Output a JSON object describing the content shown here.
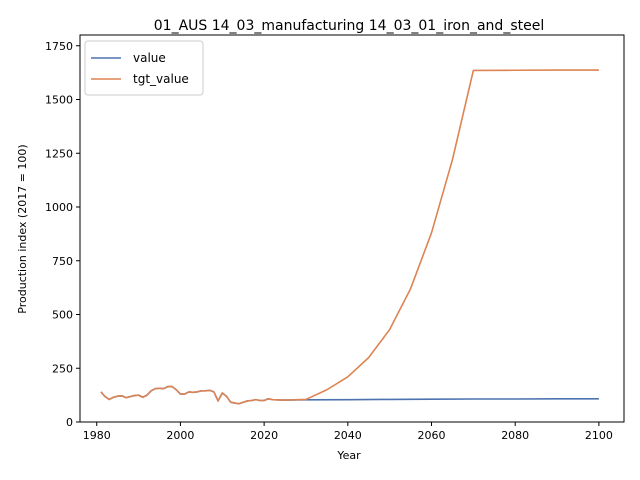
{
  "chart_data": {
    "type": "line",
    "title": "01_AUS 14_03_manufacturing 14_03_01_iron_and_steel",
    "xlabel": "Year",
    "ylabel": "Production index (2017 = 100)",
    "xlim": [
      1976,
      2106
    ],
    "ylim": [
      0,
      1800
    ],
    "xticks": [
      1980,
      2000,
      2020,
      2040,
      2060,
      2080,
      2100
    ],
    "yticks": [
      0,
      250,
      500,
      750,
      1000,
      1250,
      1500,
      1750
    ],
    "legend_position": "top-left",
    "grid": false,
    "series": [
      {
        "name": "value",
        "color": "#4c72b0",
        "x": [
          1981,
          1982,
          1983,
          1984,
          1985,
          1986,
          1987,
          1988,
          1989,
          1990,
          1991,
          1992,
          1993,
          1994,
          1995,
          1996,
          1997,
          1998,
          1999,
          2000,
          2001,
          2002,
          2003,
          2004,
          2005,
          2006,
          2007,
          2008,
          2009,
          2010,
          2011,
          2012,
          2013,
          2014,
          2015,
          2016,
          2017,
          2018,
          2019,
          2020,
          2021,
          2022,
          2023,
          2024,
          2025,
          2030,
          2040,
          2050,
          2060,
          2070,
          2080,
          2090,
          2100
        ],
        "y": [
          140,
          118,
          105,
          115,
          120,
          122,
          113,
          118,
          123,
          125,
          115,
          125,
          145,
          155,
          157,
          155,
          165,
          165,
          150,
          130,
          130,
          140,
          138,
          140,
          145,
          145,
          147,
          140,
          98,
          135,
          120,
          92,
          88,
          85,
          92,
          98,
          100,
          104,
          100,
          100,
          108,
          104,
          103,
          102,
          102,
          103,
          104,
          105,
          106,
          107,
          107,
          108,
          108
        ]
      },
      {
        "name": "tgt_value",
        "color": "#dd8452",
        "x": [
          1981,
          1982,
          1983,
          1984,
          1985,
          1986,
          1987,
          1988,
          1989,
          1990,
          1991,
          1992,
          1993,
          1994,
          1995,
          1996,
          1997,
          1998,
          1999,
          2000,
          2001,
          2002,
          2003,
          2004,
          2005,
          2006,
          2007,
          2008,
          2009,
          2010,
          2011,
          2012,
          2013,
          2014,
          2015,
          2016,
          2017,
          2018,
          2019,
          2020,
          2021,
          2022,
          2023,
          2024,
          2025,
          2030,
          2035,
          2040,
          2045,
          2050,
          2055,
          2060,
          2065,
          2070,
          2080,
          2090,
          2100
        ],
        "y": [
          140,
          118,
          105,
          115,
          120,
          122,
          113,
          118,
          123,
          125,
          115,
          125,
          145,
          155,
          157,
          155,
          165,
          165,
          150,
          130,
          130,
          140,
          138,
          140,
          145,
          145,
          147,
          140,
          98,
          135,
          120,
          92,
          88,
          85,
          92,
          98,
          100,
          104,
          100,
          100,
          108,
          104,
          103,
          102,
          102,
          105,
          150,
          210,
          300,
          430,
          620,
          880,
          1220,
          1635,
          1636,
          1637,
          1637
        ]
      }
    ]
  }
}
